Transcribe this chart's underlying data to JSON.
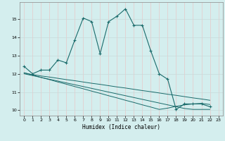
{
  "xlabel": "Humidex (Indice chaleur)",
  "bg_color": "#d4eeee",
  "line_color": "#1a6b6b",
  "grid_color": "#c0dada",
  "xlim": [
    -0.5,
    23.5
  ],
  "ylim": [
    9.7,
    15.9
  ],
  "xticks": [
    0,
    1,
    2,
    3,
    4,
    5,
    6,
    7,
    8,
    9,
    10,
    11,
    12,
    13,
    14,
    15,
    16,
    17,
    18,
    19,
    20,
    21,
    22,
    23
  ],
  "yticks": [
    10,
    11,
    12,
    13,
    14,
    15
  ],
  "line1_x": [
    0,
    1,
    2,
    3,
    4,
    5,
    6,
    7,
    8,
    9,
    10,
    11,
    12,
    13,
    14,
    15,
    16,
    17,
    18,
    19,
    20,
    21,
    22
  ],
  "line1_y": [
    12.4,
    12.0,
    12.2,
    12.2,
    12.75,
    12.6,
    13.85,
    15.05,
    14.85,
    13.1,
    14.85,
    15.15,
    15.55,
    14.65,
    14.65,
    13.25,
    12.0,
    11.7,
    10.05,
    10.35,
    10.35,
    10.35,
    10.2
  ],
  "line2_x": [
    0,
    1,
    2,
    3,
    4,
    5,
    6,
    7,
    8,
    9,
    10,
    11,
    12,
    13,
    14,
    15,
    16,
    17,
    18,
    19,
    20,
    21,
    22
  ],
  "line2_y": [
    12.05,
    11.95,
    11.88,
    11.82,
    11.75,
    11.68,
    11.62,
    11.55,
    11.48,
    11.42,
    11.35,
    11.28,
    11.22,
    11.15,
    11.08,
    11.02,
    10.95,
    10.88,
    10.82,
    10.75,
    10.68,
    10.62,
    10.55
  ],
  "line3_x": [
    0,
    1,
    2,
    3,
    4,
    5,
    6,
    7,
    8,
    9,
    10,
    11,
    12,
    13,
    14,
    15,
    16,
    17,
    18,
    19,
    20,
    21,
    22
  ],
  "line3_y": [
    12.05,
    11.93,
    11.8,
    11.68,
    11.55,
    11.43,
    11.3,
    11.18,
    11.05,
    10.93,
    10.8,
    10.68,
    10.55,
    10.43,
    10.3,
    10.18,
    10.05,
    10.12,
    10.22,
    10.3,
    10.35,
    10.38,
    10.32
  ],
  "line4_x": [
    0,
    1,
    2,
    3,
    4,
    5,
    6,
    7,
    8,
    9,
    10,
    11,
    12,
    13,
    14,
    15,
    16,
    17,
    18,
    19,
    20,
    21,
    22
  ],
  "line4_y": [
    12.0,
    11.9,
    11.8,
    11.7,
    11.6,
    11.5,
    11.4,
    11.3,
    11.2,
    11.1,
    11.0,
    10.9,
    10.8,
    10.7,
    10.6,
    10.5,
    10.4,
    10.3,
    10.2,
    10.1,
    10.05,
    10.05,
    10.05
  ]
}
